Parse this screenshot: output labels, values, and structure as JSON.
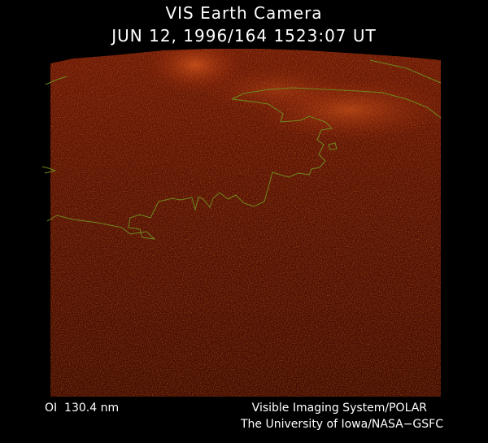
{
  "header": {
    "title": "VIS Earth Camera",
    "timestamp": "JUN 12, 1996/164 1523:07 UT"
  },
  "footer": {
    "wavelength": "OI  130.4 nm",
    "instrument": "Visible Imaging System/POLAR",
    "institution": "The University of Iowa/NASA−GSFC"
  }
}
